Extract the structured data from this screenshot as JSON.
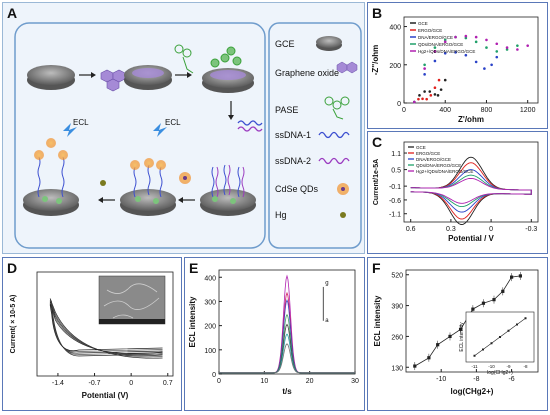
{
  "panels": {
    "A": {
      "label": "A",
      "legend": [
        {
          "key": "gce",
          "label": "GCE"
        },
        {
          "key": "go",
          "label": "Graphene oxide"
        },
        {
          "key": "pase",
          "label": "PASE"
        },
        {
          "key": "ss1",
          "label": "ssDNA-1"
        },
        {
          "key": "ss2",
          "label": "ssDNA-2"
        },
        {
          "key": "qd",
          "label": "CdSe QDs"
        },
        {
          "key": "hg",
          "label": "Hg"
        }
      ],
      "ecl_labels": [
        "ECL",
        "ECL"
      ]
    },
    "B": {
      "label": "B",
      "ylabel": "-Z''/ohm",
      "xlabel": "Z'/ohm",
      "legend": [
        "GCE",
        "ERGO/GCE",
        "DNA/ERGO/GCE",
        "QDs/DNA/ERGO/GCE",
        "Hg2+/QDs/DNA/ERGO/GCE"
      ]
    },
    "C": {
      "label": "C",
      "ylabel": "Current/1e-5A",
      "xlabel": "Potential / V",
      "legend": [
        "GCE",
        "ERGO/GCE",
        "DNA/ERGO/GCE",
        "QDs/DNA/ERGO/GCE",
        "Hg2+/QDs/DNA/ERGO/GCE"
      ]
    },
    "D": {
      "label": "D",
      "ylabel": "Current( × 10-5 A)",
      "xlabel": "Potential (V)"
    },
    "E": {
      "label": "E",
      "ylabel": "ECL intensity",
      "xlabel": "t/s",
      "annot_a": "a",
      "annot_g": "g"
    },
    "F": {
      "label": "F",
      "ylabel": "ECL intensity",
      "xlabel": "log(CHg2+)",
      "inset_ylabel": "ECL intensity",
      "inset_xlabel": "log(CHg2+)"
    }
  },
  "chart_data": [
    {
      "id": "B",
      "type": "scatter",
      "xlabel": "Z'/ohm",
      "ylabel": "-Z''/ohm",
      "x_ticks": [
        0,
        400,
        800,
        1200
      ],
      "y_ticks": [
        0,
        200,
        400
      ],
      "xlim": [
        0,
        1300
      ],
      "ylim": [
        0,
        450
      ],
      "series": [
        {
          "name": "GCE",
          "color": "#222222",
          "points": [
            [
              100,
              5
            ],
            [
              150,
              40
            ],
            [
              200,
              60
            ],
            [
              250,
              60
            ],
            [
              300,
              45
            ],
            [
              330,
              40
            ],
            [
              360,
              70
            ],
            [
              400,
              120
            ]
          ]
        },
        {
          "name": "ERGO/GCE",
          "color": "#e0201d",
          "points": [
            [
              100,
              5
            ],
            [
              140,
              20
            ],
            [
              180,
              22
            ],
            [
              220,
              20
            ],
            [
              260,
              40
            ],
            [
              300,
              80
            ],
            [
              340,
              120
            ]
          ]
        },
        {
          "name": "DNA/ERGO/GCE",
          "color": "#2a42c8",
          "points": [
            [
              100,
              5
            ],
            [
              200,
              150
            ],
            [
              300,
              220
            ],
            [
              400,
              260
            ],
            [
              500,
              265
            ],
            [
              600,
              250
            ],
            [
              700,
              215
            ],
            [
              780,
              180
            ],
            [
              850,
              200
            ],
            [
              900,
              240
            ]
          ]
        },
        {
          "name": "QDs/DNA/ERGO/GCE",
          "color": "#20a06a",
          "points": [
            [
              100,
              5
            ],
            [
              200,
              200
            ],
            [
              300,
              290
            ],
            [
              400,
              330
            ],
            [
              500,
              345
            ],
            [
              600,
              340
            ],
            [
              700,
              320
            ],
            [
              800,
              290
            ],
            [
              900,
              270
            ],
            [
              1000,
              280
            ],
            [
              1100,
              300
            ]
          ]
        },
        {
          "name": "Hg2+/QDs/DNA/ERGO/GCE",
          "color": "#b020b0",
          "points": [
            [
              100,
              5
            ],
            [
              200,
              180
            ],
            [
              300,
              270
            ],
            [
              400,
              320
            ],
            [
              500,
              345
            ],
            [
              600,
              350
            ],
            [
              700,
              345
            ],
            [
              800,
              330
            ],
            [
              900,
              310
            ],
            [
              1000,
              290
            ],
            [
              1100,
              280
            ],
            [
              1200,
              300
            ]
          ]
        }
      ]
    },
    {
      "id": "C",
      "type": "line",
      "xlabel": "Potential / V",
      "ylabel": "Current/1e-5A",
      "x_ticks": [
        0.6,
        0.3,
        0.0,
        -0.3
      ],
      "y_ticks": [
        1.1,
        0.5,
        -0.1,
        -0.6,
        -1.1
      ],
      "xlim": [
        0.65,
        -0.35
      ],
      "ylim": [
        -1.4,
        1.5
      ]
    },
    {
      "id": "D",
      "type": "line",
      "xlabel": "Potential (V)",
      "ylabel": "Current( × 10-5 A)",
      "x_ticks": [
        -1.4,
        -0.7,
        0.0,
        0.7
      ],
      "xlim": [
        -1.8,
        0.8
      ]
    },
    {
      "id": "E",
      "type": "line",
      "xlabel": "t/s",
      "ylabel": "ECL intensity",
      "x_ticks": [
        0,
        10,
        20,
        30
      ],
      "y_ticks": [
        0,
        100,
        200,
        300,
        400
      ],
      "xlim": [
        0,
        30
      ],
      "ylim": [
        0,
        430
      ],
      "peak_center": 15,
      "peaks": [
        {
          "height": 400,
          "color": "#b020b0"
        },
        {
          "height": 330,
          "color": "#d02060"
        },
        {
          "height": 300,
          "color": "#4040c0"
        },
        {
          "height": 240,
          "color": "#40a060"
        },
        {
          "height": 200,
          "color": "#404040"
        },
        {
          "height": 160,
          "color": "#20a0a0"
        },
        {
          "height": 120,
          "color": "#707070"
        }
      ]
    },
    {
      "id": "F",
      "type": "scatter",
      "xlabel": "log(CHg2+)",
      "ylabel": "ECL intensity",
      "x_ticks": [
        -10,
        -8,
        -6
      ],
      "y_ticks": [
        130,
        260,
        390,
        520
      ],
      "xlim": [
        -12,
        -4.5
      ],
      "ylim": [
        110,
        540
      ],
      "x": [
        -11.5,
        -10.7,
        -10.2,
        -9.5,
        -8.9,
        -8.2,
        -7.6,
        -7.0,
        -6.5,
        -6.0,
        -5.5
      ],
      "y": [
        135,
        170,
        225,
        260,
        290,
        375,
        400,
        415,
        450,
        510,
        515
      ],
      "inset": {
        "x_ticks": [
          -11,
          -10,
          -9,
          -8
        ],
        "x": [
          -11,
          -10.5,
          -10,
          -9.5,
          -9,
          -8.5,
          -8
        ],
        "y": [
          1,
          2,
          3,
          4,
          5,
          6,
          7
        ]
      }
    }
  ]
}
